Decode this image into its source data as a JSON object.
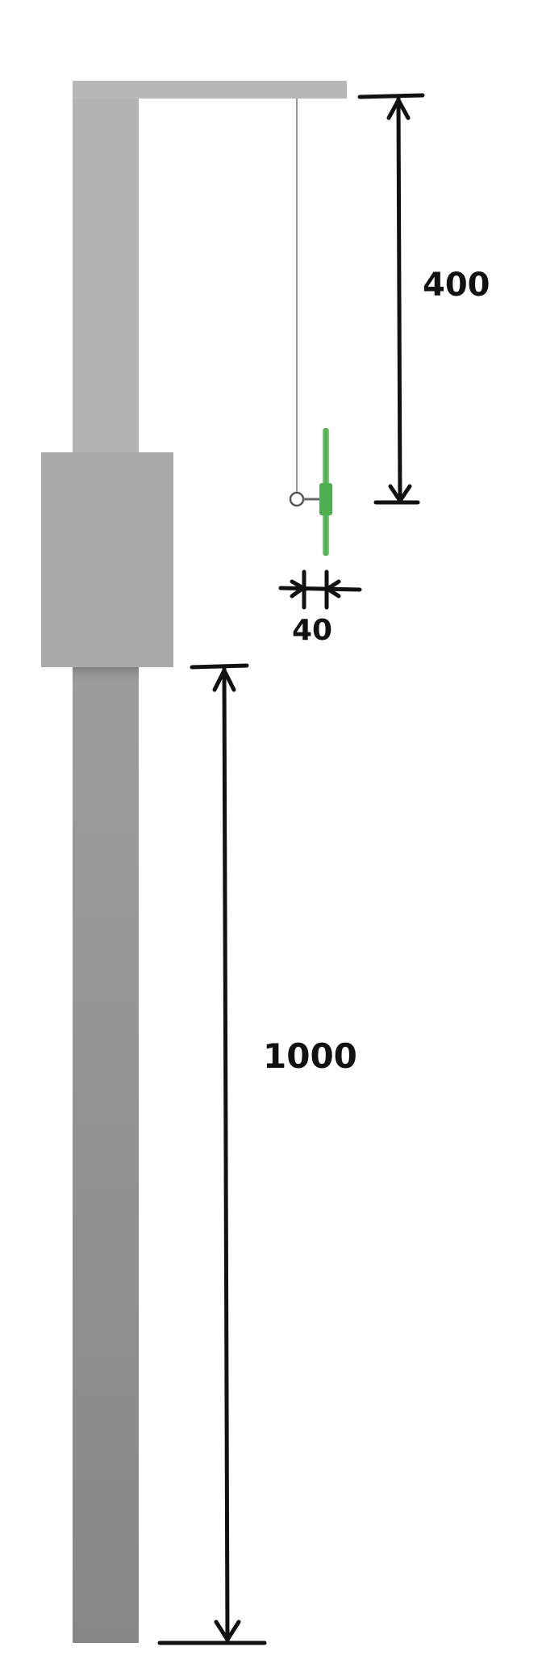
{
  "dimensions": {
    "pendulum_length": "400",
    "disc_thickness": "40",
    "lower_column_length": "1000"
  },
  "colors": {
    "structure_light": "#b4b4b4",
    "structure_dark": "#8a8a8a",
    "block": "#a9a9a9",
    "disc_green": "#5cb85c",
    "string": "#9a9a9a",
    "ink": "#111111"
  }
}
